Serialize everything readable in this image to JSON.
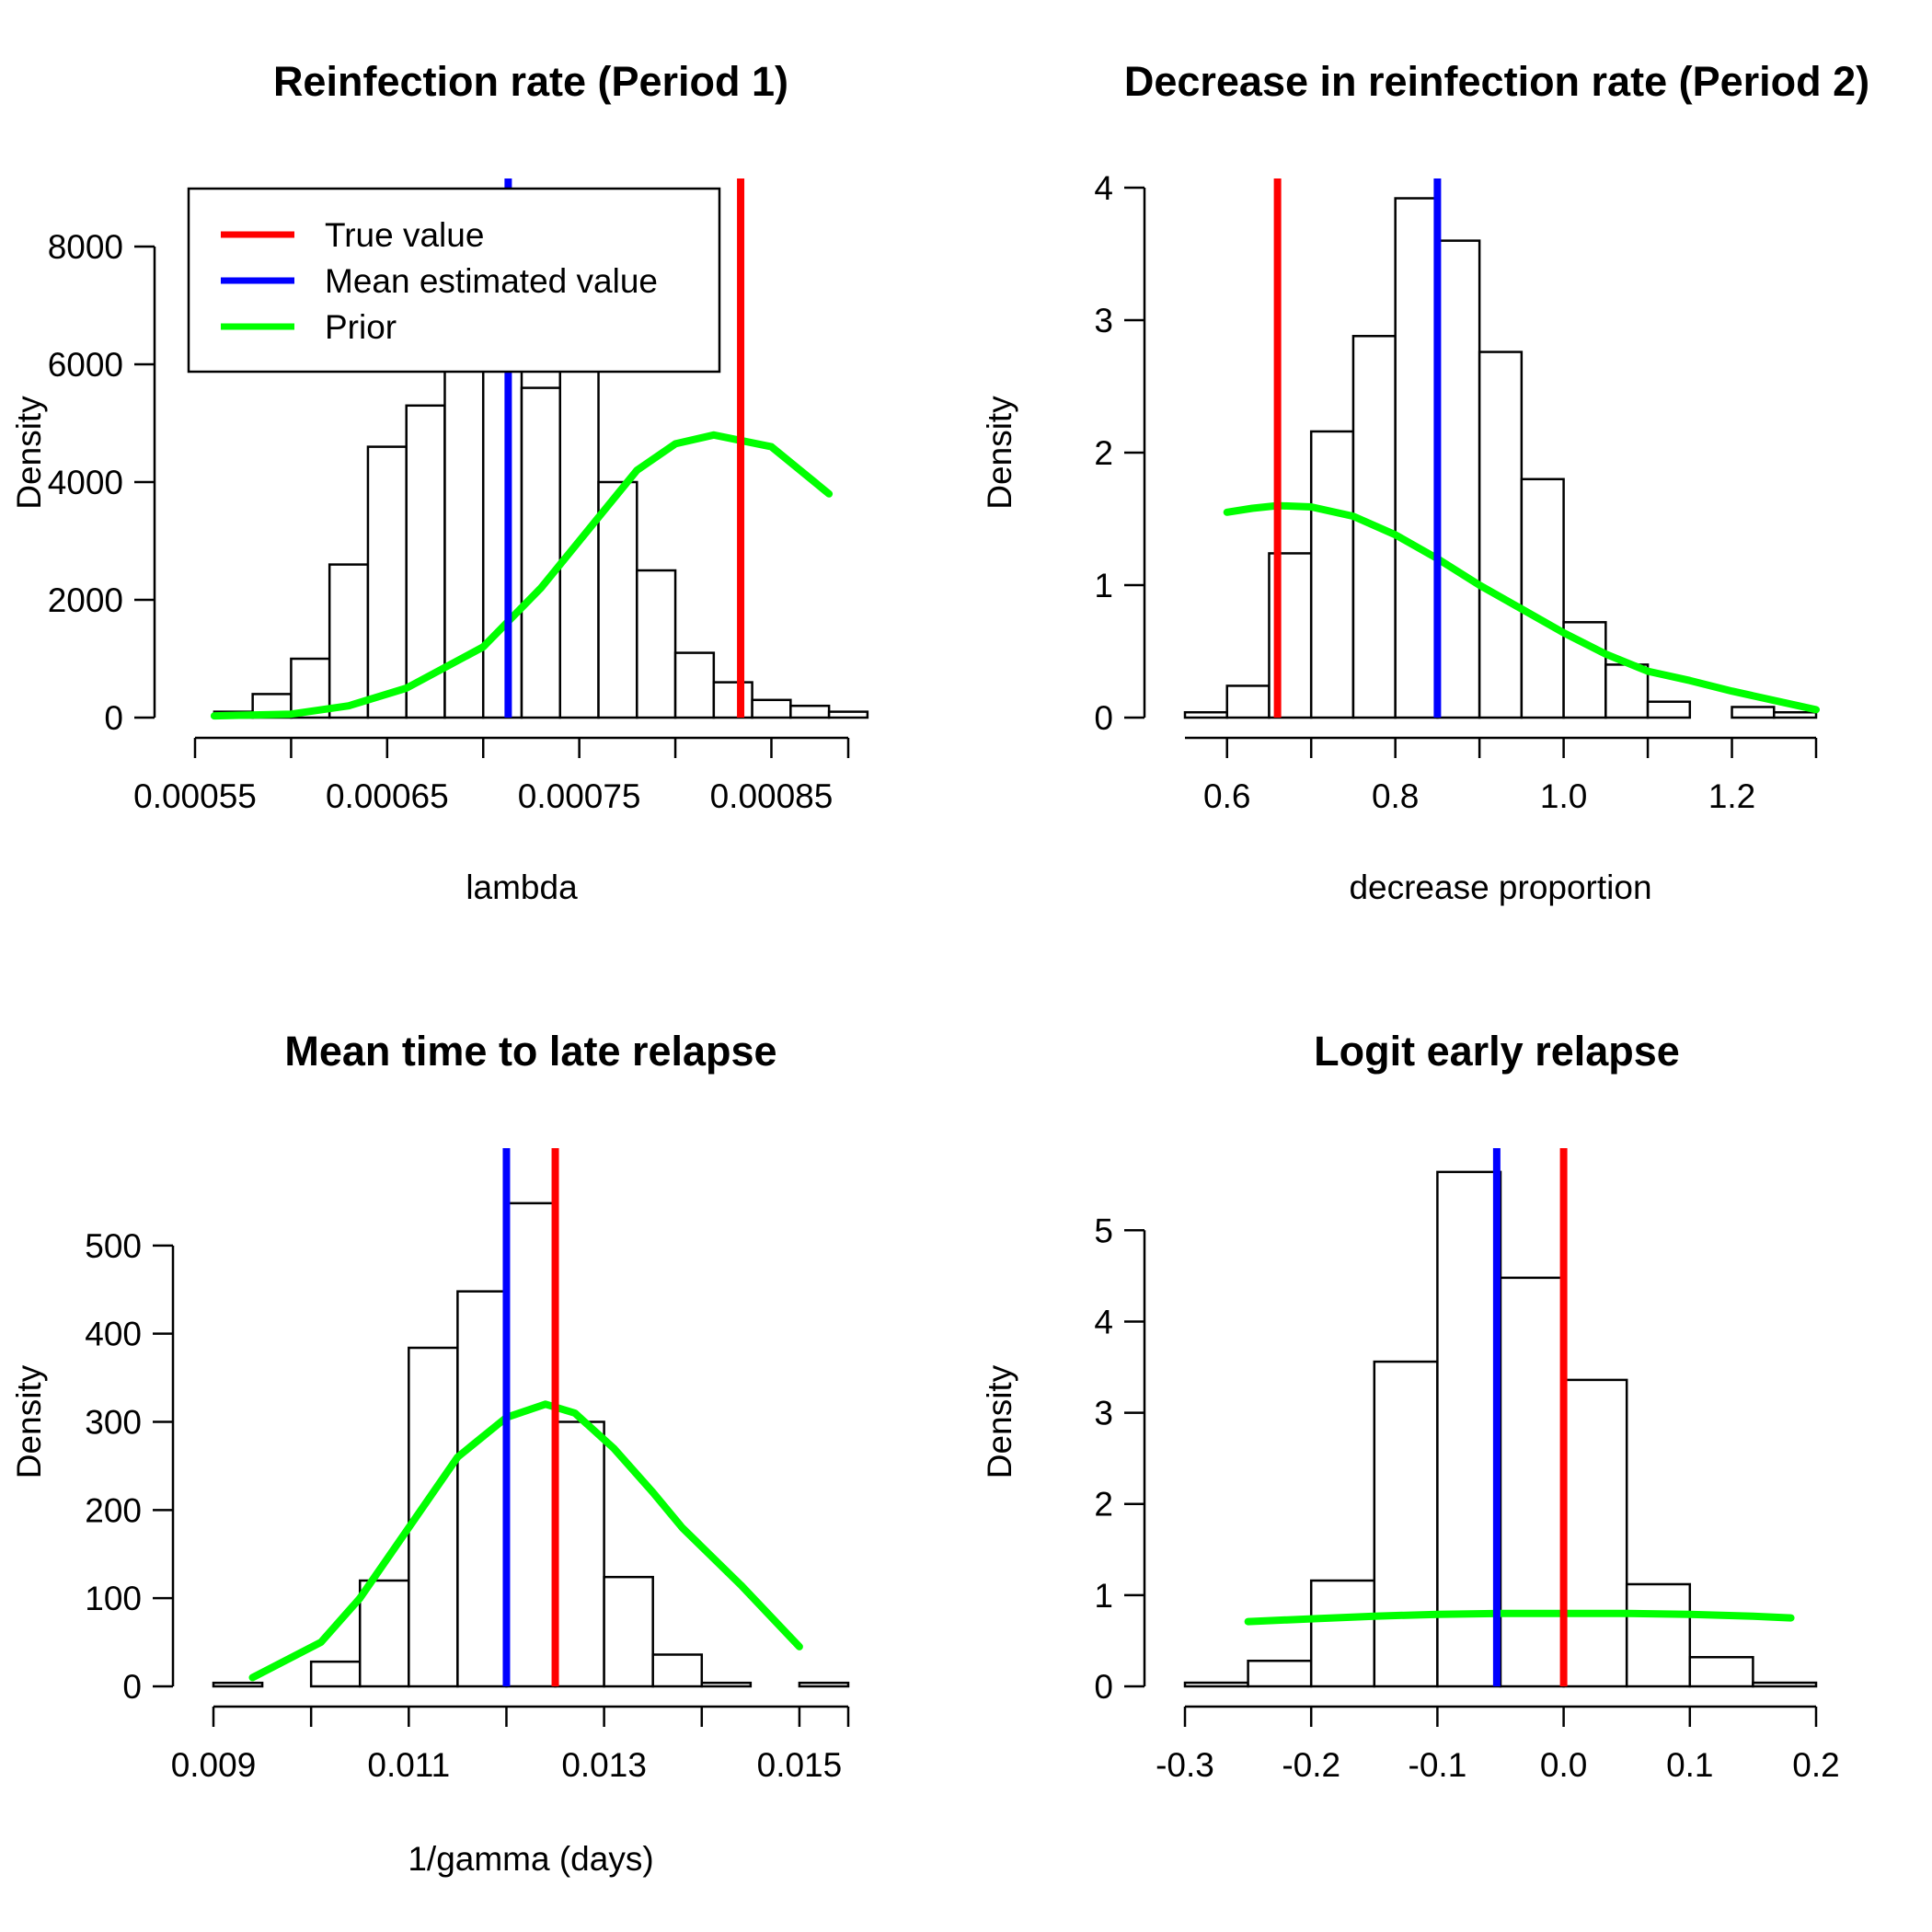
{
  "chart_data": [
    {
      "type": "bar",
      "title": "Reinfection rate (Period 1)",
      "xlabel": "lambda",
      "ylabel": "Density",
      "xlim": [
        0.00055,
        0.00089
      ],
      "ylim": [
        0,
        9000
      ],
      "xticks": [
        "0.00055",
        "0.00065",
        "0.00075",
        "0.00085"
      ],
      "xtick_values": [
        0.00055,
        0.00065,
        0.00075,
        0.00085
      ],
      "yticks": [
        "0",
        "2000",
        "4000",
        "6000",
        "8000"
      ],
      "ytick_values": [
        0,
        2000,
        4000,
        6000,
        8000
      ],
      "bin_width": 2e-05,
      "bin_starts": [
        0.00056,
        0.00058,
        0.0006,
        0.00062,
        0.00064,
        0.00066,
        0.00068,
        0.0007,
        0.00072,
        0.00074,
        0.00076,
        0.00078,
        0.0008,
        0.00082,
        0.00084,
        0.00086,
        0.00088
      ],
      "values": [
        100,
        400,
        1000,
        2600,
        4600,
        5300,
        6100,
        6100,
        5600,
        6100,
        4000,
        2500,
        1100,
        600,
        300,
        200,
        100
      ],
      "true_value": 0.000834,
      "mean_estimate": 0.000713,
      "prior_curve": [
        [
          0.00056,
          30
        ],
        [
          0.0006,
          60
        ],
        [
          0.00063,
          200
        ],
        [
          0.00066,
          500
        ],
        [
          0.0007,
          1200
        ],
        [
          0.00073,
          2200
        ],
        [
          0.00076,
          3400
        ],
        [
          0.00078,
          4200
        ],
        [
          0.0008,
          4650
        ],
        [
          0.00082,
          4800
        ],
        [
          0.00085,
          4600
        ],
        [
          0.00088,
          3800
        ]
      ],
      "legend": {
        "position": "top-left",
        "items": [
          {
            "label": "True value",
            "color": "#ff0000"
          },
          {
            "label": "Mean estimated value",
            "color": "#0000ff"
          },
          {
            "label": "Prior",
            "color": "#00ff00"
          }
        ]
      }
    },
    {
      "type": "bar",
      "title": "Decrease in reinfection rate (Period 2)",
      "xlabel": "decrease proportion",
      "ylabel": "Density",
      "xlim": [
        0.55,
        1.3
      ],
      "ylim": [
        0,
        4
      ],
      "xticks": [
        "0.6",
        "0.8",
        "1.0",
        "1.2"
      ],
      "xtick_values": [
        0.6,
        0.8,
        1.0,
        1.2
      ],
      "yticks": [
        "0",
        "1",
        "2",
        "3",
        "4"
      ],
      "ytick_values": [
        0,
        1,
        2,
        3,
        4
      ],
      "bin_width": 0.05,
      "bin_starts": [
        0.55,
        0.6,
        0.65,
        0.7,
        0.75,
        0.8,
        0.85,
        0.9,
        0.95,
        1.0,
        1.05,
        1.1,
        1.15,
        1.2,
        1.25
      ],
      "values": [
        0.04,
        0.24,
        1.24,
        2.16,
        2.88,
        3.92,
        3.6,
        2.76,
        1.8,
        0.72,
        0.4,
        0.12,
        0,
        0.08,
        0.04
      ],
      "true_value": 0.66,
      "mean_estimate": 0.85,
      "prior_curve": [
        [
          0.6,
          1.55
        ],
        [
          0.63,
          1.58
        ],
        [
          0.66,
          1.6
        ],
        [
          0.7,
          1.59
        ],
        [
          0.75,
          1.52
        ],
        [
          0.8,
          1.38
        ],
        [
          0.85,
          1.2
        ],
        [
          0.9,
          1.0
        ],
        [
          0.95,
          0.82
        ],
        [
          1.0,
          0.64
        ],
        [
          1.05,
          0.48
        ],
        [
          1.1,
          0.35
        ],
        [
          1.15,
          0.28
        ],
        [
          1.2,
          0.2
        ],
        [
          1.3,
          0.06
        ]
      ]
    },
    {
      "type": "bar",
      "title": "Mean time to late relapse",
      "xlabel": "1/gamma (days)",
      "ylabel": "Density",
      "xlim": [
        0.009,
        0.0155
      ],
      "ylim": [
        0,
        600
      ],
      "xticks": [
        "0.009",
        "0.011",
        "0.013",
        "0.015"
      ],
      "xtick_values": [
        0.009,
        0.011,
        0.013,
        0.015
      ],
      "yticks": [
        "0",
        "100",
        "200",
        "300",
        "400",
        "500"
      ],
      "ytick_values": [
        0,
        100,
        200,
        300,
        400,
        500
      ],
      "bin_width": 0.0005,
      "bin_starts": [
        0.009,
        0.0095,
        0.01,
        0.0105,
        0.011,
        0.0115,
        0.012,
        0.0125,
        0.013,
        0.0135,
        0.014,
        0.0145,
        0.015
      ],
      "values": [
        4,
        0,
        28,
        120,
        384,
        448,
        548,
        300,
        124,
        36,
        4,
        0,
        4
      ],
      "true_value": 0.0125,
      "mean_estimate": 0.012,
      "prior_curve": [
        [
          0.0094,
          10
        ],
        [
          0.0101,
          50
        ],
        [
          0.0105,
          100
        ],
        [
          0.011,
          180
        ],
        [
          0.0115,
          260
        ],
        [
          0.012,
          305
        ],
        [
          0.0124,
          320
        ],
        [
          0.0127,
          310
        ],
        [
          0.0131,
          270
        ],
        [
          0.0135,
          220
        ],
        [
          0.0138,
          180
        ],
        [
          0.0144,
          115
        ],
        [
          0.015,
          45
        ]
      ]
    },
    {
      "type": "bar",
      "title": "Logit early relapse",
      "xlabel": "",
      "ylabel": "Density",
      "xlim": [
        -0.3,
        0.2
      ],
      "ylim": [
        0,
        5.8
      ],
      "xticks": [
        "-0.3",
        "-0.2",
        "-0.1",
        "0.0",
        "0.1",
        "0.2"
      ],
      "xtick_values": [
        -0.3,
        -0.2,
        -0.1,
        0.0,
        0.1,
        0.2
      ],
      "yticks": [
        "0",
        "1",
        "2",
        "3",
        "4",
        "5"
      ],
      "ytick_values": [
        0,
        1,
        2,
        3,
        4,
        5
      ],
      "bin_width": 0.05,
      "bin_starts": [
        -0.3,
        -0.25,
        -0.2,
        -0.15,
        -0.1,
        -0.05,
        0.0,
        0.05,
        0.1,
        0.15
      ],
      "values": [
        0.04,
        0.28,
        1.16,
        3.56,
        5.64,
        4.48,
        3.36,
        1.12,
        0.32,
        0.04
      ],
      "true_value": 0.0,
      "mean_estimate": -0.053,
      "prior_curve": [
        [
          -0.25,
          0.71
        ],
        [
          -0.2,
          0.74
        ],
        [
          -0.15,
          0.77
        ],
        [
          -0.1,
          0.79
        ],
        [
          -0.05,
          0.8
        ],
        [
          0.0,
          0.8
        ],
        [
          0.05,
          0.8
        ],
        [
          0.1,
          0.79
        ],
        [
          0.15,
          0.77
        ],
        [
          0.18,
          0.75
        ]
      ]
    }
  ],
  "colors": {
    "true_value": "#ff0000",
    "mean_estimate": "#0000ff",
    "prior": "#00ff00"
  }
}
